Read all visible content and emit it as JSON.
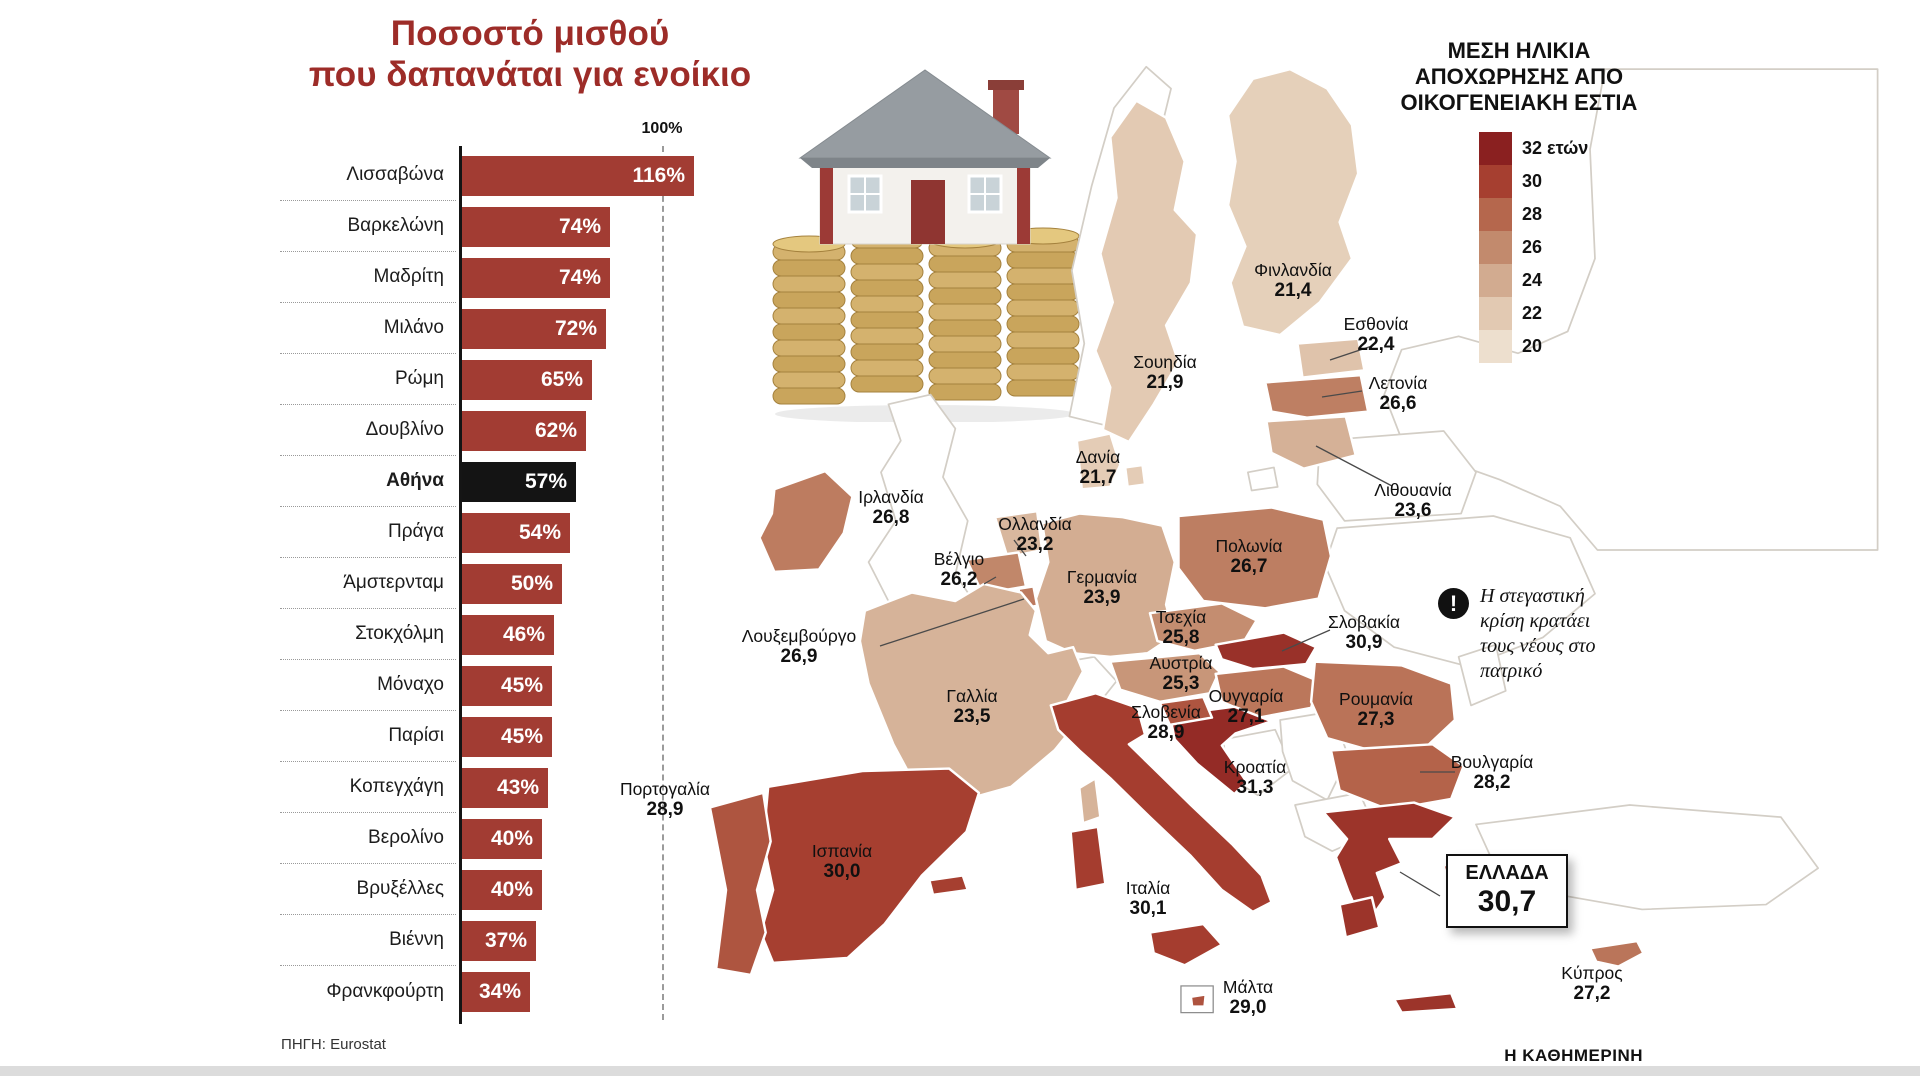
{
  "header": {
    "line1": "Ποσοστό μισθού",
    "line2": "που δαπανάται για ενοίκιο"
  },
  "source": "ΠΗΓΗ: Eurostat",
  "branding": "Η ΚΑΘΗΜΕΡΙΝΗ",
  "chart_data": [
    {
      "type": "bar",
      "orientation": "horizontal",
      "title": "Ποσοστό μισθού που δαπανάται για ενοίκιο",
      "unit": "%",
      "axis_marker": "100%",
      "xlim": [
        0,
        120
      ],
      "categories": [
        "Λισσαβώνα",
        "Βαρκελώνη",
        "Μαδρίτη",
        "Μιλάνο",
        "Ρώμη",
        "Δουβλίνο",
        "Αθήνα",
        "Πράγα",
        "Άμστερνταμ",
        "Στοκχόλμη",
        "Μόναχο",
        "Παρίσι",
        "Κοπεγχάγη",
        "Βερολίνο",
        "Βρυξέλλες",
        "Βιέννη",
        "Φρανκφούρτη"
      ],
      "values": [
        116,
        74,
        74,
        72,
        65,
        62,
        57,
        54,
        50,
        46,
        45,
        45,
        43,
        40,
        40,
        37,
        34
      ],
      "highlight_category": "Αθήνα",
      "bar_color": "#a23c33",
      "highlight_color": "#141414"
    },
    {
      "type": "heatmap",
      "subtype": "choropleth_europe_map",
      "title": "ΜΕΣΗ ΗΛΙΚΙΑ ΑΠΟΧΩΡΗΣΗΣ ΑΠΟ ΟΙΚΟΓΕΝΕΙΑΚΗ ΕΣΤΙΑ",
      "title_lines": [
        "ΜΕΣΗ ΗΛΙΚΙΑ",
        "ΑΠΟΧΩΡΗΣΗΣ ΑΠΟ",
        "ΟΙΚΟΓΕΝΕΙΑΚΗ ΕΣΤΙΑ"
      ],
      "legend": [
        {
          "label": "32 ετών",
          "value": 32,
          "color": "#8a2020"
        },
        {
          "label": "30",
          "value": 30,
          "color": "#a63f30"
        },
        {
          "label": "28",
          "value": 28,
          "color": "#b5674d"
        },
        {
          "label": "26",
          "value": 26,
          "color": "#c28a6d"
        },
        {
          "label": "24",
          "value": 24,
          "color": "#d2ab90"
        },
        {
          "label": "22",
          "value": 22,
          "color": "#e2c9b2"
        },
        {
          "label": "20",
          "value": 20,
          "color": "#eddfce"
        }
      ],
      "countries": [
        {
          "id": "finland",
          "name": "Φινλανδία",
          "value": "21,4"
        },
        {
          "id": "sweden",
          "name": "Σουηδία",
          "value": "21,9"
        },
        {
          "id": "estonia",
          "name": "Εσθονία",
          "value": "22,4"
        },
        {
          "id": "latvia",
          "name": "Λετονία",
          "value": "26,6"
        },
        {
          "id": "lithuania",
          "name": "Λιθουανία",
          "value": "23,6"
        },
        {
          "id": "denmark",
          "name": "Δανία",
          "value": "21,7"
        },
        {
          "id": "ireland",
          "name": "Ιρλανδία",
          "value": "26,8"
        },
        {
          "id": "netherlands",
          "name": "Ολλανδία",
          "value": "23,2"
        },
        {
          "id": "belgium",
          "name": "Βέλγιο",
          "value": "26,2"
        },
        {
          "id": "luxembourg",
          "name": "Λουξεμβούργο",
          "value": "26,9"
        },
        {
          "id": "germany",
          "name": "Γερμανία",
          "value": "23,9"
        },
        {
          "id": "poland",
          "name": "Πολωνία",
          "value": "26,7"
        },
        {
          "id": "czechia",
          "name": "Τσεχία",
          "value": "25,8"
        },
        {
          "id": "slovakia",
          "name": "Σλοβακία",
          "value": "30,9"
        },
        {
          "id": "austria",
          "name": "Αυστρία",
          "value": "25,3"
        },
        {
          "id": "hungary",
          "name": "Ουγγαρία",
          "value": "27,1"
        },
        {
          "id": "slovenia",
          "name": "Σλοβενία",
          "value": "28,9"
        },
        {
          "id": "romania",
          "name": "Ρουμανία",
          "value": "27,3"
        },
        {
          "id": "france",
          "name": "Γαλλία",
          "value": "23,5"
        },
        {
          "id": "croatia",
          "name": "Κροατία",
          "value": "31,3"
        },
        {
          "id": "bulgaria",
          "name": "Βουλγαρία",
          "value": "28,2"
        },
        {
          "id": "portugal",
          "name": "Πορτογαλία",
          "value": "28,9"
        },
        {
          "id": "spain",
          "name": "Ισπανία",
          "value": "30,0"
        },
        {
          "id": "italy",
          "name": "Ιταλία",
          "value": "30,1"
        },
        {
          "id": "malta",
          "name": "Μάλτα",
          "value": "29,0"
        },
        {
          "id": "greece",
          "name": "ΕΛΛΑΔΑ",
          "value": "30,7"
        },
        {
          "id": "cyprus",
          "name": "Κύπρος",
          "value": "27,2"
        }
      ],
      "callout": {
        "country": "ΕΛΛΑΔΑ",
        "display": "30,7"
      },
      "annotation_icon": "!",
      "annotation": "Η στεγαστική κρίση κρατάει τους νέους στο πατρικό"
    }
  ]
}
